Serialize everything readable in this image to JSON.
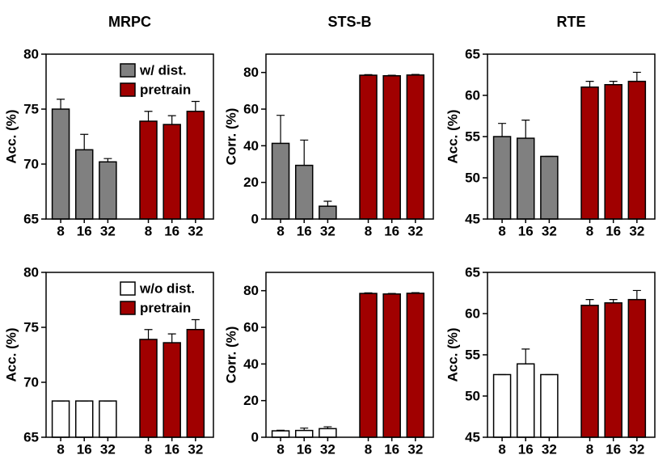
{
  "chart_data": [
    {
      "type": "bar",
      "title": "MRPC",
      "ylabel": "Acc. (%)",
      "categories": [
        "8",
        "16",
        "32"
      ],
      "ylim": [
        65,
        80
      ],
      "yticks": [
        65,
        70,
        75,
        80
      ],
      "legend": "upper right",
      "series": [
        {
          "name": "w/ dist.",
          "color": "#808080",
          "values": [
            75.0,
            71.3,
            70.2
          ],
          "errors": [
            0.9,
            1.4,
            0.3
          ]
        },
        {
          "name": "pretrain",
          "color": "#a00000",
          "values": [
            73.9,
            73.6,
            74.8
          ],
          "errors": [
            0.9,
            0.8,
            0.9
          ]
        }
      ]
    },
    {
      "type": "bar",
      "title": "STS-B",
      "ylabel": "Corr. (%)",
      "categories": [
        "8",
        "16",
        "32"
      ],
      "ylim": [
        0,
        90
      ],
      "yticks": [
        0,
        20,
        40,
        60,
        80
      ],
      "series": [
        {
          "color": "#808080",
          "values": [
            41.3,
            29.3,
            7.0
          ],
          "errors": [
            15.3,
            13.8,
            2.7
          ]
        },
        {
          "color": "#a00000",
          "values": [
            78.5,
            78.2,
            78.6
          ],
          "errors": [
            0.3,
            0.3,
            0.3
          ]
        }
      ]
    },
    {
      "type": "bar",
      "title": "RTE",
      "ylabel": "Acc. (%)",
      "categories": [
        "8",
        "16",
        "32"
      ],
      "ylim": [
        45,
        65
      ],
      "yticks": [
        45,
        50,
        55,
        60,
        65
      ],
      "series": [
        {
          "color": "#808080",
          "values": [
            55.0,
            54.8,
            52.6
          ],
          "errors": [
            1.6,
            2.2,
            0
          ]
        },
        {
          "color": "#a00000",
          "values": [
            61.0,
            61.3,
            61.7
          ],
          "errors": [
            0.7,
            0.4,
            1.1
          ]
        }
      ]
    },
    {
      "type": "bar",
      "ylabel": "Acc. (%)",
      "categories": [
        "8",
        "16",
        "32"
      ],
      "ylim": [
        65,
        80
      ],
      "yticks": [
        65,
        70,
        75,
        80
      ],
      "legend": "upper right",
      "series": [
        {
          "name": "w/o dist.",
          "color": "#ffffff",
          "values": [
            68.3,
            68.3,
            68.3
          ],
          "errors": [
            0,
            0,
            0
          ]
        },
        {
          "name": "pretrain",
          "color": "#a00000",
          "values": [
            73.9,
            73.6,
            74.8
          ],
          "errors": [
            0.9,
            0.8,
            0.9
          ]
        }
      ]
    },
    {
      "type": "bar",
      "ylabel": "Corr. (%)",
      "categories": [
        "8",
        "16",
        "32"
      ],
      "ylim": [
        0,
        90
      ],
      "yticks": [
        0,
        20,
        40,
        60,
        80
      ],
      "series": [
        {
          "color": "#ffffff",
          "values": [
            3.5,
            3.7,
            4.7
          ],
          "errors": [
            0.3,
            1.3,
            1.0
          ]
        },
        {
          "color": "#a00000",
          "values": [
            78.5,
            78.2,
            78.6
          ],
          "errors": [
            0.3,
            0.3,
            0.3
          ]
        }
      ]
    },
    {
      "type": "bar",
      "ylabel": "Acc. (%)",
      "categories": [
        "8",
        "16",
        "32"
      ],
      "ylim": [
        45,
        65
      ],
      "yticks": [
        45,
        50,
        55,
        60,
        65
      ],
      "series": [
        {
          "color": "#ffffff",
          "values": [
            52.6,
            53.9,
            52.6
          ],
          "errors": [
            0,
            1.8,
            0
          ]
        },
        {
          "color": "#a00000",
          "values": [
            61.0,
            61.3,
            61.7
          ],
          "errors": [
            0.7,
            0.4,
            1.1
          ]
        }
      ]
    }
  ]
}
